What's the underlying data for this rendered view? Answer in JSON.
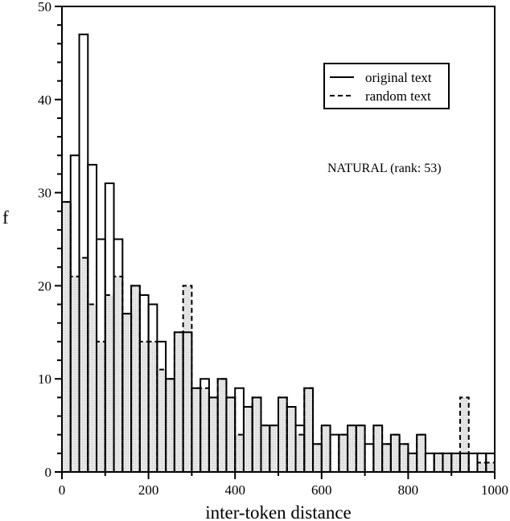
{
  "chart_data": {
    "type": "bar",
    "subtype": "histogram",
    "title": "",
    "annotation": "NATURAL (rank: 53)",
    "xlabel": "inter-token distance",
    "ylabel": "f",
    "xlim": [
      0,
      1000
    ],
    "ylim": [
      0,
      50
    ],
    "bin_width": 20,
    "x_ticks": [
      "0",
      "200",
      "400",
      "600",
      "800",
      "1000"
    ],
    "y_ticks": [
      "0",
      "10",
      "20",
      "30",
      "40",
      "50"
    ],
    "legend": {
      "position": "upper right",
      "entries": [
        {
          "label": "original text",
          "style": "solid"
        },
        {
          "label": "random text",
          "style": "dashed"
        }
      ]
    },
    "bin_starts": [
      0,
      20,
      40,
      60,
      80,
      100,
      120,
      140,
      160,
      180,
      200,
      220,
      240,
      260,
      280,
      300,
      320,
      340,
      360,
      380,
      400,
      420,
      440,
      460,
      480,
      500,
      520,
      540,
      560,
      580,
      600,
      620,
      640,
      660,
      680,
      700,
      720,
      740,
      760,
      780,
      800,
      820,
      840,
      860,
      880,
      900,
      920,
      940,
      960,
      980
    ],
    "series": [
      {
        "name": "original text",
        "style": "solid",
        "fill": "none",
        "values": [
          29,
          34,
          47,
          33,
          25,
          31,
          25,
          17,
          20,
          19,
          18,
          14,
          10,
          15,
          15,
          9,
          10,
          8,
          10,
          8,
          9,
          7,
          8,
          5,
          5,
          8,
          7,
          5,
          9,
          3,
          5,
          4,
          4,
          5,
          5,
          3,
          5,
          3,
          4,
          3,
          2,
          4,
          2,
          2,
          2,
          2,
          2,
          2,
          2,
          2
        ]
      },
      {
        "name": "random text",
        "style": "dashed",
        "fill": "#e0e0e0",
        "values": [
          29,
          21,
          23,
          18,
          14,
          19,
          21,
          17,
          20,
          14,
          14,
          11,
          10,
          15,
          20,
          9,
          9,
          8,
          10,
          8,
          4,
          7,
          8,
          5,
          5,
          8,
          7,
          4,
          9,
          3,
          5,
          0,
          4,
          5,
          5,
          0,
          5,
          3,
          4,
          3,
          2,
          4,
          0,
          2,
          2,
          2,
          8,
          0,
          1,
          1
        ]
      }
    ]
  }
}
